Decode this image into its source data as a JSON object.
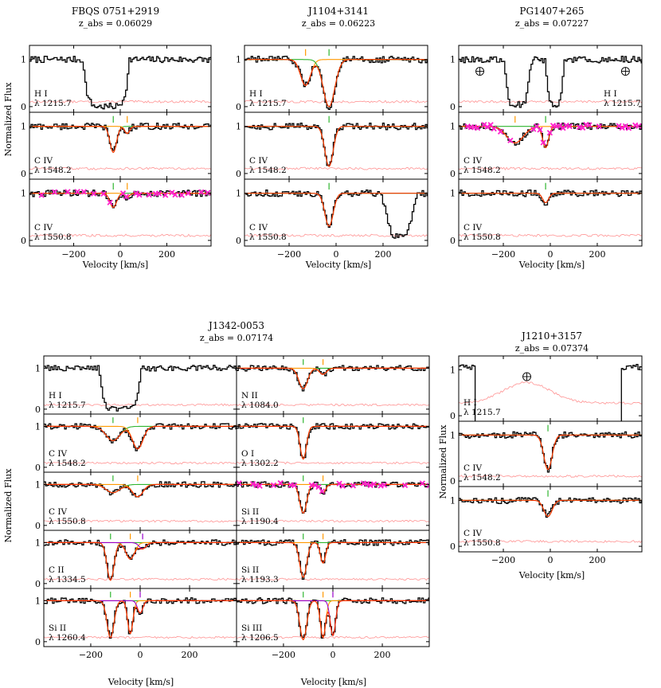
{
  "figure": {
    "ylabel": "Normalized Flux",
    "xlabel": "Velocity [km/s]",
    "x_ticks": [
      -200,
      0,
      200
    ],
    "y_ticks": [
      0,
      1
    ],
    "xlim": [
      -390,
      390
    ],
    "ylim": [
      -0.12,
      1.3
    ]
  },
  "colors": {
    "data": "#000000",
    "error": "#ff9e9e",
    "total_fit": "#ff3300",
    "comp_green": "#2fb52f",
    "comp_orange": "#ff9900",
    "comp_purple": "#9900cc",
    "masked": "#ff22cc"
  },
  "chart_data": [
    {
      "type": "line",
      "title": "FBQS 0751+2919",
      "subtitle": "z_abs = 0.06029",
      "panels": [
        {
          "ion": "H I",
          "wave": "λ 1215.7",
          "profile": "hi_trough",
          "center": -60,
          "width": 200,
          "depth": 1.0,
          "components": [],
          "masked": false
        },
        {
          "ion": "C IV",
          "wave": "λ 1548.2",
          "components": [
            {
              "v": -30,
              "depth": 0.55,
              "b": 20,
              "color": "comp_green"
            },
            {
              "v": 30,
              "depth": 0.15,
              "b": 15,
              "color": "comp_orange"
            }
          ],
          "masked": false
        },
        {
          "ion": "C IV",
          "wave": "λ 1550.8",
          "components": [
            {
              "v": -30,
              "depth": 0.3,
              "b": 20,
              "color": "comp_green"
            },
            {
              "v": 30,
              "depth": 0.08,
              "b": 15,
              "color": "comp_orange"
            }
          ],
          "masked": true
        }
      ]
    },
    {
      "type": "line",
      "title": "J1104+3141",
      "subtitle": "z_abs = 0.06223",
      "panels": [
        {
          "ion": "H I",
          "wave": "λ 1215.7",
          "components": [
            {
              "v": -130,
              "depth": 0.55,
              "b": 30,
              "color": "comp_orange"
            },
            {
              "v": -30,
              "depth": 1.0,
              "b": 35,
              "color": "comp_green"
            }
          ],
          "masked": false
        },
        {
          "ion": "C IV",
          "wave": "λ 1548.2",
          "components": [
            {
              "v": -30,
              "depth": 0.85,
              "b": 25,
              "color": "comp_green"
            }
          ],
          "masked": false
        },
        {
          "ion": "C IV",
          "wave": "λ 1550.8",
          "components": [
            {
              "v": -30,
              "depth": 0.7,
              "b": 25,
              "color": "comp_green"
            }
          ],
          "extra_trough": {
            "center": 270,
            "depth": 0.9,
            "width": 60
          },
          "masked": false
        }
      ]
    },
    {
      "type": "line",
      "title": "PG1407+265",
      "subtitle": "z_abs = 0.07227",
      "panels": [
        {
          "ion": "H I",
          "wave": "λ 1215.7",
          "profile": "hi_double",
          "troughs": [
            {
              "center": -140,
              "width": 50
            },
            {
              "center": 20,
              "width": 35
            }
          ],
          "earth_symbols": [
            -300,
            320
          ],
          "components": [],
          "masked": false
        },
        {
          "ion": "C IV",
          "wave": "λ 1548.2",
          "components": [
            {
              "v": -150,
              "depth": 0.35,
              "b": 50,
              "color": "comp_orange"
            },
            {
              "v": -20,
              "depth": 0.45,
              "b": 18,
              "color": "comp_green"
            }
          ],
          "masked": true
        },
        {
          "ion": "C IV",
          "wave": "λ 1550.8",
          "components": [
            {
              "v": -20,
              "depth": 0.2,
              "b": 18,
              "color": "comp_green"
            }
          ],
          "masked": false
        }
      ]
    },
    {
      "type": "line",
      "title": "J1342-0053",
      "subtitle": "z_abs = 0.07174",
      "columns": [
        [
          {
            "ion": "H I",
            "wave": "λ 1215.7",
            "profile": "hi_trough",
            "center": -80,
            "width": 170,
            "depth": 1.0,
            "components": [],
            "masked": false
          },
          {
            "ion": "C IV",
            "wave": "λ 1548.2",
            "components": [
              {
                "v": -110,
                "depth": 0.35,
                "b": 40,
                "color": "comp_green"
              },
              {
                "v": -10,
                "depth": 0.55,
                "b": 30,
                "color": "comp_orange"
              }
            ],
            "masked": false
          },
          {
            "ion": "C IV",
            "wave": "λ 1550.8",
            "components": [
              {
                "v": -110,
                "depth": 0.2,
                "b": 40,
                "color": "comp_green"
              },
              {
                "v": -10,
                "depth": 0.3,
                "b": 30,
                "color": "comp_orange"
              }
            ],
            "masked": false
          },
          {
            "ion": "C II",
            "wave": "λ 1334.5",
            "components": [
              {
                "v": -120,
                "depth": 0.92,
                "b": 20,
                "color": "comp_green"
              },
              {
                "v": -40,
                "depth": 0.4,
                "b": 25,
                "color": "comp_orange"
              },
              {
                "v": 10,
                "depth": 0.15,
                "b": 20,
                "color": "comp_purple"
              }
            ],
            "masked": false
          },
          {
            "ion": "Si II",
            "wave": "λ 1260.4",
            "components": [
              {
                "v": -120,
                "depth": 0.9,
                "b": 20,
                "color": "comp_green"
              },
              {
                "v": -40,
                "depth": 0.8,
                "b": 15,
                "color": "comp_orange"
              },
              {
                "v": 0,
                "depth": 0.3,
                "b": 15,
                "color": "comp_purple"
              }
            ],
            "masked": false
          }
        ],
        [
          {
            "ion": "N II",
            "wave": "λ 1084.0",
            "components": [
              {
                "v": -120,
                "depth": 0.5,
                "b": 25,
                "color": "comp_green"
              },
              {
                "v": -40,
                "depth": 0.15,
                "b": 20,
                "color": "comp_orange"
              }
            ],
            "masked": false
          },
          {
            "ion": "O I",
            "wave": "λ 1302.2",
            "components": [
              {
                "v": -120,
                "depth": 0.8,
                "b": 18,
                "color": "comp_green"
              }
            ],
            "masked": false
          },
          {
            "ion": "Si II",
            "wave": "λ 1190.4",
            "components": [
              {
                "v": -120,
                "depth": 0.7,
                "b": 20,
                "color": "comp_green"
              },
              {
                "v": -40,
                "depth": 0.2,
                "b": 15,
                "color": "comp_orange"
              }
            ],
            "masked": true
          },
          {
            "ion": "Si II",
            "wave": "λ 1193.3",
            "components": [
              {
                "v": -120,
                "depth": 0.85,
                "b": 20,
                "color": "comp_green"
              },
              {
                "v": -40,
                "depth": 0.5,
                "b": 15,
                "color": "comp_orange"
              }
            ],
            "masked": false
          },
          {
            "ion": "Si III",
            "wave": "λ 1206.5",
            "components": [
              {
                "v": -120,
                "depth": 0.95,
                "b": 20,
                "color": "comp_green"
              },
              {
                "v": -40,
                "depth": 0.9,
                "b": 15,
                "color": "comp_orange"
              },
              {
                "v": 0,
                "depth": 0.85,
                "b": 15,
                "color": "comp_purple"
              }
            ],
            "masked": false
          }
        ]
      ]
    },
    {
      "type": "line",
      "title": "J1210+3157",
      "subtitle": "z_abs = 0.07374",
      "panels": [
        {
          "ion": "H I",
          "wave": "λ 1215.7",
          "profile": "hi_gap",
          "earth_symbols": [
            -100
          ],
          "components": [],
          "masked": false
        },
        {
          "ion": "C IV",
          "wave": "λ 1548.2",
          "components": [
            {
              "v": -10,
              "depth": 0.75,
              "b": 25,
              "color": "comp_green"
            }
          ],
          "masked": false
        },
        {
          "ion": "C IV",
          "wave": "λ 1550.8",
          "components": [
            {
              "v": -10,
              "depth": 0.35,
              "b": 25,
              "color": "comp_green"
            }
          ],
          "masked": false
        }
      ]
    }
  ]
}
